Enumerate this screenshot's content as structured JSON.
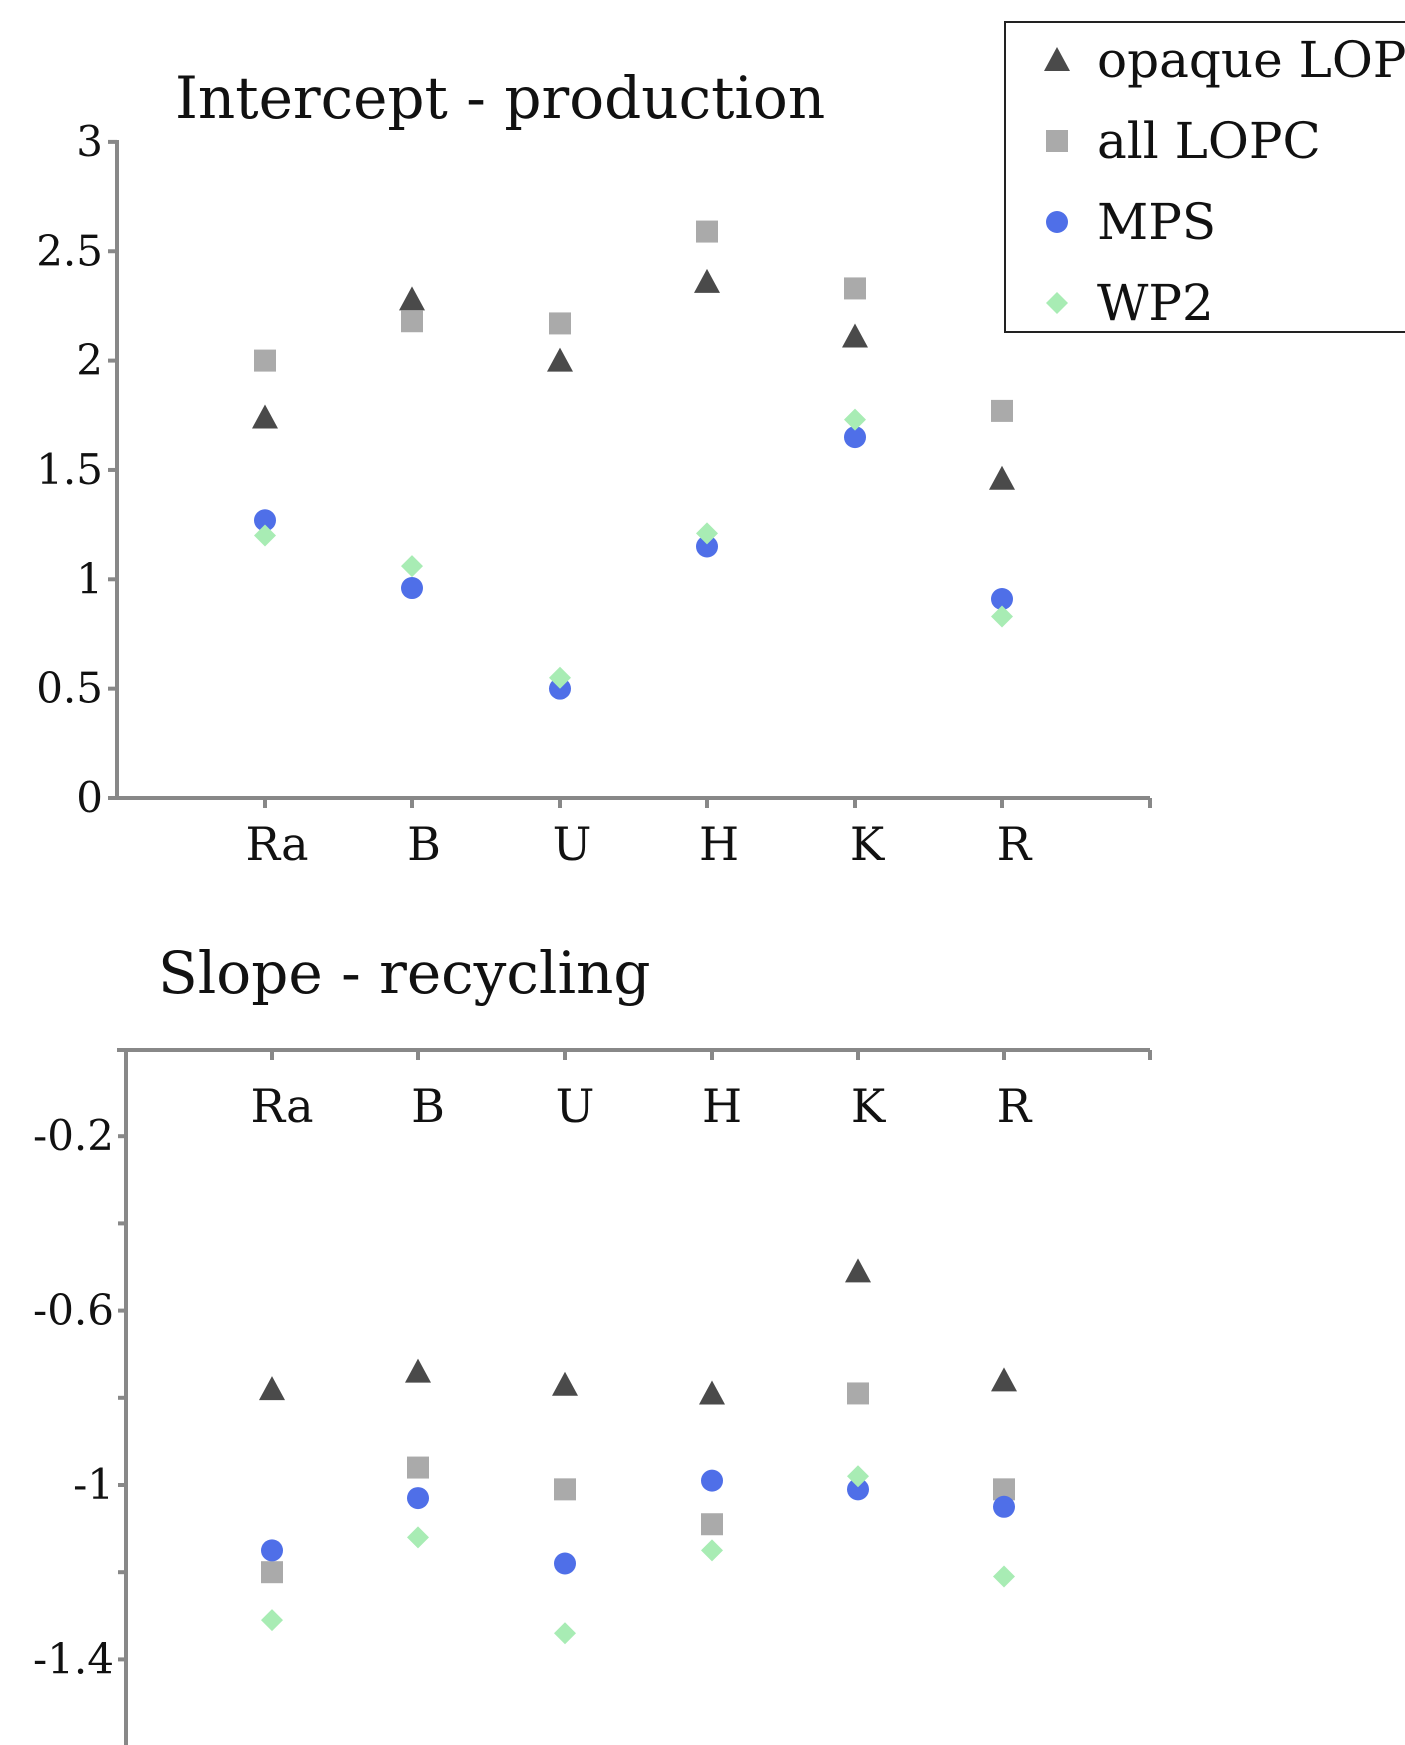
{
  "chart_data": [
    {
      "type": "scatter",
      "title": "Intercept - production",
      "categories": [
        "Ra",
        "B",
        "U",
        "H",
        "K",
        "R"
      ],
      "ylim": [
        0,
        3
      ],
      "yticks": [
        "0",
        "0.5",
        "1",
        "1.5",
        "2",
        "2.5",
        "3"
      ],
      "grid": false,
      "legend": "top-right",
      "series": [
        {
          "name": "opaque LOPC",
          "marker": "triangle",
          "color": "#4a4a4a",
          "values": [
            1.74,
            2.28,
            2.0,
            2.36,
            2.11,
            1.46
          ]
        },
        {
          "name": "all LOPC",
          "marker": "square",
          "color": "#aaaaaa",
          "values": [
            2.0,
            2.18,
            2.17,
            2.59,
            2.33,
            1.77
          ]
        },
        {
          "name": "MPS",
          "marker": "circle",
          "color": "#4f6fe8",
          "values": [
            1.27,
            0.96,
            0.5,
            1.15,
            1.65,
            0.91
          ]
        },
        {
          "name": "WP2",
          "marker": "diamond",
          "color": "#a8ecb4",
          "values": [
            1.2,
            1.06,
            0.55,
            1.21,
            1.73,
            0.83
          ]
        }
      ]
    },
    {
      "type": "scatter",
      "title": "Slope - recycling",
      "categories": [
        "Ra",
        "B",
        "U",
        "H",
        "K",
        "R"
      ],
      "ylim": [
        -1.5,
        0
      ],
      "yticks": [
        "-0.2",
        "-0.6",
        "-1",
        "-1.4"
      ],
      "grid": false,
      "x_axis_position": "top",
      "series": [
        {
          "name": "opaque LOPC",
          "marker": "triangle",
          "color": "#4a4a4a",
          "values": [
            -0.78,
            -0.74,
            -0.77,
            -0.79,
            -0.51,
            -0.76
          ]
        },
        {
          "name": "all LOPC",
          "marker": "square",
          "color": "#aaaaaa",
          "values": [
            -1.2,
            -0.96,
            -1.01,
            -1.09,
            -0.79,
            -1.01
          ]
        },
        {
          "name": "MPS",
          "marker": "circle",
          "color": "#4f6fe8",
          "values": [
            -1.15,
            -1.03,
            -1.18,
            -0.99,
            -1.01,
            -1.05
          ]
        },
        {
          "name": "WP2",
          "marker": "diamond",
          "color": "#a8ecb4",
          "values": [
            -1.31,
            -1.12,
            -1.34,
            -1.15,
            -0.98,
            -1.21
          ]
        }
      ]
    }
  ]
}
